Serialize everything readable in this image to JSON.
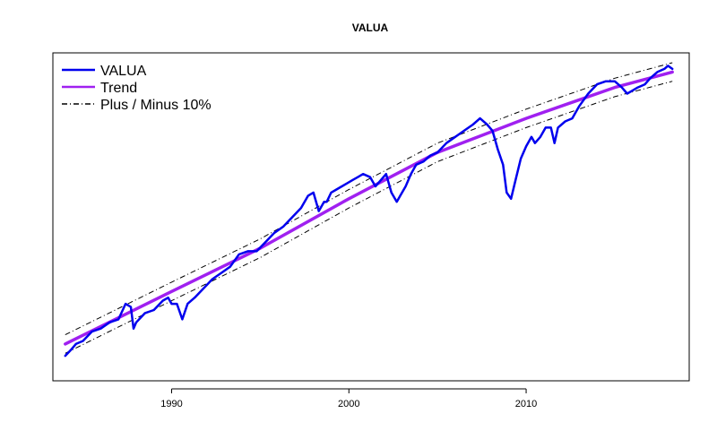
{
  "chart_data": {
    "type": "line",
    "title": "VALUA",
    "xlabel": "",
    "ylabel": "",
    "xlim": [
      1983.3,
      2019.2
    ],
    "ylim": [
      0,
      1
    ],
    "y_axis_labels_shown": false,
    "x_ticks": [
      1990,
      2000,
      2010
    ],
    "x_tick_labels": [
      "1990",
      "2000",
      "2010"
    ],
    "legend": {
      "position": "top-left",
      "entries": [
        {
          "label": "VALUA",
          "color": "#0000ee",
          "style": "solid"
        },
        {
          "label": "Trend",
          "color": "#a020f0",
          "style": "solid"
        },
        {
          "label": "Plus / Minus 10%",
          "color": "#000000",
          "style": "dashdot"
        }
      ]
    },
    "series": [
      {
        "name": "VALUA",
        "color": "#0000ee",
        "x": [
          1984.0,
          1984.3,
          1984.6,
          1985.0,
          1985.5,
          1986.0,
          1986.5,
          1987.0,
          1987.4,
          1987.7,
          1987.85,
          1988.0,
          1988.5,
          1989.0,
          1989.5,
          1989.8,
          1990.0,
          1990.3,
          1990.6,
          1990.9,
          1991.3,
          1991.8,
          1992.3,
          1992.8,
          1993.3,
          1993.8,
          1994.3,
          1994.8,
          1995.3,
          1995.8,
          1996.3,
          1996.8,
          1997.3,
          1997.7,
          1998.0,
          1998.3,
          1998.6,
          1998.75,
          1999.0,
          1999.3,
          1999.6,
          1999.9,
          2000.2,
          2000.5,
          2000.8,
          2001.2,
          2001.5,
          2001.8,
          2002.1,
          2002.4,
          2002.7,
          2002.9,
          2003.2,
          2003.5,
          2003.8,
          2004.2,
          2004.6,
          2005.0,
          2005.5,
          2006.0,
          2006.5,
          2007.0,
          2007.4,
          2007.8,
          2008.1,
          2008.4,
          2008.7,
          2008.9,
          2009.15,
          2009.4,
          2009.7,
          2010.0,
          2010.3,
          2010.5,
          2010.8,
          2011.1,
          2011.4,
          2011.6,
          2011.8,
          2012.2,
          2012.6,
          2013.0,
          2013.5,
          2014.0,
          2014.5,
          2015.0,
          2015.4,
          2015.7,
          2016.0,
          2016.3,
          2016.7,
          2017.0,
          2017.4,
          2017.8,
          2018.0,
          2018.25
        ],
        "y": [
          0.052,
          0.07,
          0.09,
          0.1,
          0.13,
          0.14,
          0.16,
          0.17,
          0.22,
          0.21,
          0.14,
          0.16,
          0.19,
          0.2,
          0.23,
          0.24,
          0.22,
          0.22,
          0.17,
          0.22,
          0.24,
          0.27,
          0.3,
          0.32,
          0.34,
          0.38,
          0.39,
          0.39,
          0.42,
          0.45,
          0.47,
          0.5,
          0.53,
          0.57,
          0.58,
          0.52,
          0.55,
          0.55,
          0.58,
          0.59,
          0.6,
          0.61,
          0.62,
          0.63,
          0.64,
          0.63,
          0.6,
          0.62,
          0.64,
          0.58,
          0.55,
          0.57,
          0.6,
          0.64,
          0.67,
          0.68,
          0.7,
          0.71,
          0.74,
          0.76,
          0.78,
          0.8,
          0.82,
          0.8,
          0.78,
          0.72,
          0.67,
          0.58,
          0.56,
          0.62,
          0.69,
          0.73,
          0.76,
          0.74,
          0.76,
          0.79,
          0.79,
          0.74,
          0.79,
          0.81,
          0.82,
          0.86,
          0.9,
          0.93,
          0.94,
          0.94,
          0.92,
          0.9,
          0.91,
          0.92,
          0.93,
          0.95,
          0.97,
          0.98,
          0.99,
          0.98
        ]
      },
      {
        "name": "Trend",
        "color": "#a020f0",
        "x": [
          1984.0,
          1990.0,
          1995.0,
          2000.0,
          2005.0,
          2010.0,
          2015.0,
          2018.25
        ],
        "y": [
          0.09,
          0.26,
          0.4,
          0.56,
          0.71,
          0.82,
          0.92,
          0.97
        ]
      },
      {
        "name": "Plus 10%",
        "color": "#000000",
        "x": [
          1984.0,
          1990.0,
          1995.0,
          2000.0,
          2005.0,
          2010.0,
          2015.0,
          2018.25
        ],
        "y": [
          0.12,
          0.29,
          0.43,
          0.59,
          0.74,
          0.85,
          0.95,
          1.0
        ]
      },
      {
        "name": "Minus 10%",
        "color": "#000000",
        "x": [
          1984.0,
          1990.0,
          1995.0,
          2000.0,
          2005.0,
          2010.0,
          2015.0,
          2018.25
        ],
        "y": [
          0.06,
          0.23,
          0.37,
          0.53,
          0.68,
          0.79,
          0.89,
          0.94
        ]
      }
    ]
  }
}
